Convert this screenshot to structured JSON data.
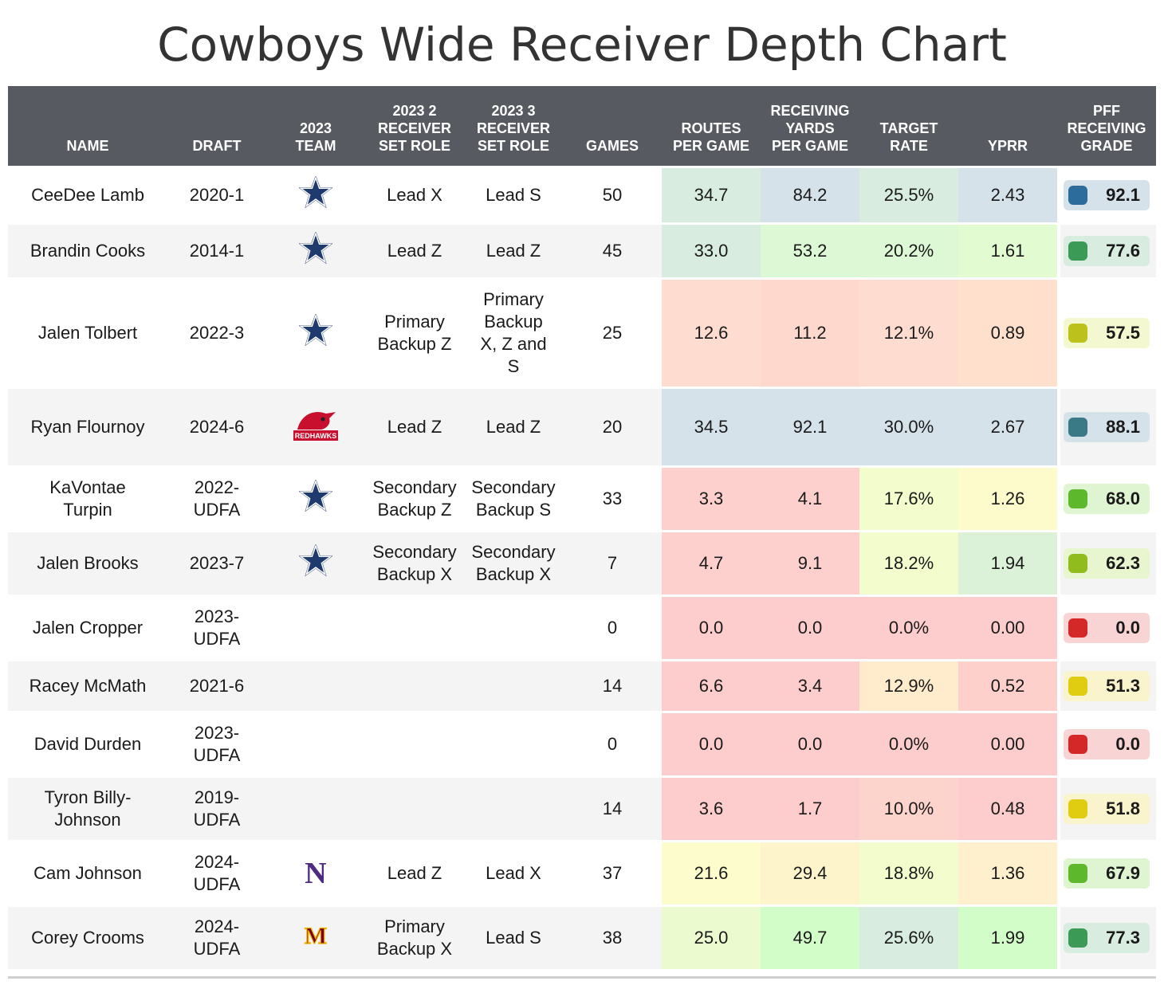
{
  "title": "Cowboys Wide Receiver Depth Chart",
  "colors": {
    "header_bg": "#575b61",
    "routes": {
      "high": "#d4eadb",
      "mid": "#fafad0",
      "low": "#fdd0cc"
    },
    "cowboys_star": "#1e3a6e",
    "se_missouri": "#c8102e",
    "northwestern": "#4e2a84",
    "minnesota": "#7a0019"
  },
  "columns": [
    {
      "key": "name",
      "label": "NAME"
    },
    {
      "key": "draft",
      "label": "DRAFT"
    },
    {
      "key": "team",
      "label": "2023\nTEAM"
    },
    {
      "key": "role2",
      "label": "2023 2\nRECEIVER\nSET ROLE"
    },
    {
      "key": "role3",
      "label": "2023 3\nRECEIVER\nSET ROLE"
    },
    {
      "key": "games",
      "label": "GAMES"
    },
    {
      "key": "routes",
      "label": "ROUTES\nPER GAME"
    },
    {
      "key": "yards",
      "label": "RECEIVING\nYARDS\nPER GAME"
    },
    {
      "key": "target",
      "label": "TARGET\nRATE"
    },
    {
      "key": "yprr",
      "label": "YPRR"
    },
    {
      "key": "grade",
      "label": "PFF\nRECEIVING\nGRADE"
    }
  ],
  "chart_data": {
    "type": "table",
    "title": "Cowboys Wide Receiver Depth Chart",
    "rows": [
      {
        "name": "CeeDee Lamb",
        "draft": "2020-1",
        "team_icon": "cowboys-star-icon",
        "role2": "Lead X",
        "role3": "Lead S",
        "games": "50",
        "routes": "34.7",
        "yards": "84.2",
        "target": "25.5%",
        "yprr": "2.43",
        "grade": "92.1",
        "cell_colors": {
          "routes": "#d8ece0",
          "yards": "#d6e2ea",
          "target": "#d8ece0",
          "yprr": "#d6e2ea"
        },
        "grade_color": "#2b6c9c",
        "grade_bg": "#d6e2ea"
      },
      {
        "name": "Brandin Cooks",
        "draft": "2014-1",
        "team_icon": "cowboys-star-icon",
        "role2": "Lead Z",
        "role3": "Lead Z",
        "games": "45",
        "routes": "33.0",
        "yards": "53.2",
        "target": "20.2%",
        "yprr": "1.61",
        "grade": "77.6",
        "cell_colors": {
          "routes": "#d8ece0",
          "yards": "#dcf8d4",
          "target": "#dcf8d4",
          "yprr": "#e2fbd0"
        },
        "grade_color": "#3c9a57",
        "grade_bg": "#d8ece0"
      },
      {
        "name": "Jalen Tolbert",
        "draft": "2022-3",
        "team_icon": "cowboys-star-icon",
        "role2": "Primary\nBackup Z",
        "role3": "Primary\nBackup\nX, Z and\nS",
        "games": "25",
        "routes": "12.6",
        "yards": "11.2",
        "target": "12.1%",
        "yprr": "0.89",
        "grade": "57.5",
        "cell_colors": {
          "routes": "#fedcd0",
          "yards": "#fed8cc",
          "target": "#fedcd0",
          "yprr": "#fee0cc"
        },
        "grade_color": "#bcc11c",
        "grade_bg": "#f4f8d0"
      },
      {
        "name": "Ryan Flournoy",
        "draft": "2024-6",
        "team_icon": "redhawks-logo-icon",
        "team_logo_text": "REDHAWKS",
        "role2": "Lead Z",
        "role3": "Lead Z",
        "games": "20",
        "routes": "34.5",
        "yards": "92.1",
        "target": "30.0%",
        "yprr": "2.67",
        "grade": "88.1",
        "cell_colors": {
          "routes": "#d6e2ea",
          "yards": "#d6e2ea",
          "target": "#d6e2ea",
          "yprr": "#d6e2ea"
        },
        "grade_color": "#3a7a86",
        "grade_bg": "#d6e2ea"
      },
      {
        "name": "KaVontae\nTurpin",
        "draft": "2022-\nUDFA",
        "team_icon": "cowboys-star-icon",
        "role2": "Secondary\nBackup Z",
        "role3": "Secondary\nBackup S",
        "games": "33",
        "routes": "3.3",
        "yards": "4.1",
        "target": "17.6%",
        "yprr": "1.26",
        "grade": "68.0",
        "cell_colors": {
          "routes": "#fdd0ce",
          "yards": "#fdd0ce",
          "target": "#f2fccc",
          "yprr": "#fdfbcc"
        },
        "grade_color": "#5eb82c",
        "grade_bg": "#dff4d0"
      },
      {
        "name": "Jalen Brooks",
        "draft": "2023-7",
        "team_icon": "cowboys-star-icon",
        "role2": "Secondary\nBackup X",
        "role3": "Secondary\nBackup X",
        "games": "7",
        "routes": "4.7",
        "yards": "9.1",
        "target": "18.2%",
        "yprr": "1.94",
        "grade": "62.3",
        "cell_colors": {
          "routes": "#fdd0ce",
          "yards": "#fdd0ce",
          "target": "#f2fccc",
          "yprr": "#dcf2d8"
        },
        "grade_color": "#90bc1e",
        "grade_bg": "#e8f6d0"
      },
      {
        "name": "Jalen Cropper",
        "draft": "2023-\nUDFA",
        "team_icon": "",
        "role2": "",
        "role3": "",
        "games": "0",
        "routes": "0.0",
        "yards": "0.0",
        "target": "0.0%",
        "yprr": "0.00",
        "grade": "0.0",
        "cell_colors": {
          "routes": "#fdcccc",
          "yards": "#fdcccc",
          "target": "#fdcccc",
          "yprr": "#fdcccc"
        },
        "grade_color": "#d42828",
        "grade_bg": "#f8d4d4"
      },
      {
        "name": "Racey McMath",
        "draft": "2021-6",
        "team_icon": "",
        "role2": "",
        "role3": "",
        "games": "14",
        "routes": "6.6",
        "yards": "3.4",
        "target": "12.9%",
        "yprr": "0.52",
        "grade": "51.3",
        "cell_colors": {
          "routes": "#fdcccc",
          "yards": "#fdcccc",
          "target": "#feeccc",
          "yprr": "#fdd0cc"
        },
        "grade_color": "#e0cc10",
        "grade_bg": "#faf4cc"
      },
      {
        "name": "David Durden",
        "draft": "2023-\nUDFA",
        "team_icon": "",
        "role2": "",
        "role3": "",
        "games": "0",
        "routes": "0.0",
        "yards": "0.0",
        "target": "0.0%",
        "yprr": "0.00",
        "grade": "0.0",
        "cell_colors": {
          "routes": "#fdcccc",
          "yards": "#fdcccc",
          "target": "#fdcccc",
          "yprr": "#fdcccc"
        },
        "grade_color": "#d42828",
        "grade_bg": "#f8d4d4"
      },
      {
        "name": "Tyron Billy-\nJohnson",
        "draft": "2019-\nUDFA",
        "team_icon": "",
        "role2": "",
        "role3": "",
        "games": "14",
        "routes": "3.6",
        "yards": "1.7",
        "target": "10.0%",
        "yprr": "0.48",
        "grade": "51.8",
        "cell_colors": {
          "routes": "#fdcccc",
          "yards": "#fdcccc",
          "target": "#fdd4cc",
          "yprr": "#fdcccc"
        },
        "grade_color": "#e0cc10",
        "grade_bg": "#faf4cc"
      },
      {
        "name": "Cam Johnson",
        "draft": "2024-\nUDFA",
        "team_icon": "northwestern-logo-icon",
        "team_logo_text": "N",
        "role2": "Lead Z",
        "role3": "Lead X",
        "games": "37",
        "routes": "21.6",
        "yards": "29.4",
        "target": "18.8%",
        "yprr": "1.36",
        "grade": "67.9",
        "cell_colors": {
          "routes": "#fcfccc",
          "yards": "#fef4cc",
          "target": "#f2fccc",
          "yprr": "#fef0cc"
        },
        "grade_color": "#5eb82c",
        "grade_bg": "#dff4d0"
      },
      {
        "name": "Corey Crooms",
        "draft": "2024-\nUDFA",
        "team_icon": "minnesota-logo-icon",
        "team_logo_text": "M",
        "role2": "Primary\nBackup X",
        "role3": "Lead S",
        "games": "38",
        "routes": "25.0",
        "yards": "49.7",
        "target": "25.6%",
        "yprr": "1.99",
        "grade": "77.3",
        "cell_colors": {
          "routes": "#ecfad0",
          "yards": "#d2fcc8",
          "target": "#d8ece0",
          "yprr": "#d2fcc8"
        },
        "grade_color": "#3c9a57",
        "grade_bg": "#d8ece0"
      }
    ]
  }
}
